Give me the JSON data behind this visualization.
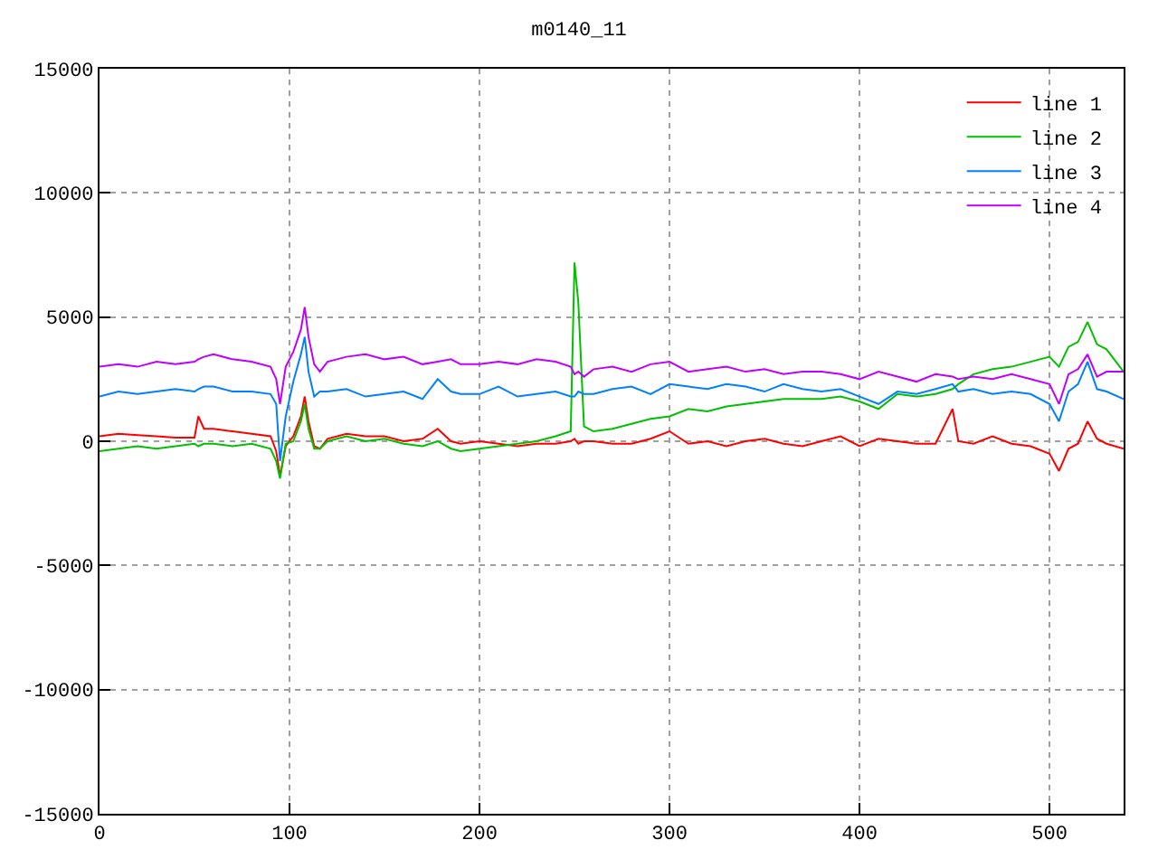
{
  "chart_data": {
    "type": "line",
    "title": "m0140_11",
    "xlim": [
      0,
      539
    ],
    "xticks": [
      0,
      100,
      200,
      300,
      400,
      500
    ],
    "ylim": [
      -15000,
      15000
    ],
    "yticks": [
      -15000,
      -10000,
      -5000,
      0,
      5000,
      10000,
      15000
    ],
    "grid": true,
    "legend": "top right",
    "line_style": "solid",
    "marker": "none",
    "x": [
      0,
      10,
      20,
      30,
      40,
      50,
      52,
      55,
      60,
      70,
      80,
      90,
      93,
      95,
      98,
      102,
      106,
      108,
      110,
      113,
      116,
      120,
      130,
      140,
      150,
      160,
      170,
      178,
      185,
      190,
      200,
      210,
      220,
      230,
      240,
      248,
      250,
      252,
      255,
      260,
      270,
      280,
      290,
      300,
      310,
      320,
      330,
      340,
      350,
      360,
      370,
      380,
      390,
      400,
      410,
      420,
      430,
      440,
      449,
      452,
      460,
      470,
      480,
      490,
      500,
      505,
      510,
      515,
      520,
      525,
      530,
      539
    ],
    "series": [
      {
        "name": "line 1",
        "color": "#ff0000",
        "values": [
          200,
          300,
          250,
          200,
          150,
          150,
          1000,
          500,
          500,
          400,
          300,
          200,
          -400,
          -1400,
          -200,
          200,
          1000,
          1800,
          800,
          -200,
          -300,
          100,
          300,
          200,
          200,
          0,
          100,
          500,
          0,
          -100,
          0,
          -100,
          -200,
          -100,
          -100,
          0,
          100,
          -100,
          0,
          0,
          -100,
          -100,
          100,
          400,
          -100,
          0,
          -200,
          0,
          100,
          -100,
          -200,
          0,
          200,
          -200,
          100,
          0,
          -100,
          -100,
          1300,
          0,
          -100,
          200,
          -100,
          -200,
          -500,
          -1200,
          -300,
          -100,
          800,
          100,
          -100,
          -300
        ]
      },
      {
        "name": "line 2",
        "color": "#00c000",
        "values": [
          -400,
          -300,
          -200,
          -300,
          -200,
          -100,
          -200,
          -100,
          -100,
          -200,
          -100,
          -300,
          -800,
          -1500,
          -100,
          0,
          800,
          1500,
          500,
          -300,
          -300,
          0,
          200,
          0,
          100,
          -100,
          -200,
          0,
          -300,
          -400,
          -300,
          -200,
          -100,
          0,
          200,
          400,
          7200,
          5600,
          600,
          400,
          500,
          700,
          900,
          1000,
          1300,
          1200,
          1400,
          1500,
          1600,
          1700,
          1700,
          1700,
          1800,
          1600,
          1300,
          1900,
          1800,
          1900,
          2100,
          2300,
          2700,
          2900,
          3000,
          3200,
          3400,
          3000,
          3800,
          4000,
          4800,
          3900,
          3700,
          2800
        ]
      },
      {
        "name": "line 3",
        "color": "#0080ff",
        "values": [
          1800,
          2000,
          1900,
          2000,
          2100,
          2000,
          2100,
          2200,
          2200,
          2000,
          2000,
          1900,
          1500,
          -800,
          1000,
          2400,
          3500,
          4200,
          2800,
          1800,
          2000,
          2000,
          2100,
          1800,
          1900,
          2000,
          1700,
          2500,
          2000,
          1900,
          1900,
          2200,
          1800,
          1900,
          2000,
          1800,
          1800,
          2000,
          1900,
          1900,
          2100,
          2200,
          1900,
          2300,
          2200,
          2100,
          2300,
          2200,
          2000,
          2300,
          2100,
          2000,
          2100,
          1800,
          1500,
          2000,
          1900,
          2100,
          2300,
          2000,
          2100,
          1900,
          2000,
          1900,
          1500,
          800,
          2000,
          2300,
          3200,
          2100,
          2000,
          1700
        ]
      },
      {
        "name": "line 4",
        "color": "#c000ff",
        "values": [
          3000,
          3100,
          3000,
          3200,
          3100,
          3200,
          3300,
          3400,
          3500,
          3300,
          3200,
          3000,
          2500,
          1500,
          3000,
          3600,
          4500,
          5400,
          4200,
          3100,
          2800,
          3200,
          3400,
          3500,
          3300,
          3400,
          3100,
          3200,
          3300,
          3100,
          3100,
          3200,
          3100,
          3300,
          3200,
          3000,
          2700,
          2800,
          2600,
          2900,
          3000,
          2800,
          3100,
          3200,
          2800,
          2900,
          3000,
          2800,
          2900,
          2700,
          2800,
          2800,
          2700,
          2500,
          2800,
          2600,
          2400,
          2700,
          2600,
          2500,
          2600,
          2500,
          2700,
          2500,
          2300,
          1500,
          2700,
          2900,
          3500,
          2600,
          2800,
          2800
        ]
      }
    ]
  }
}
